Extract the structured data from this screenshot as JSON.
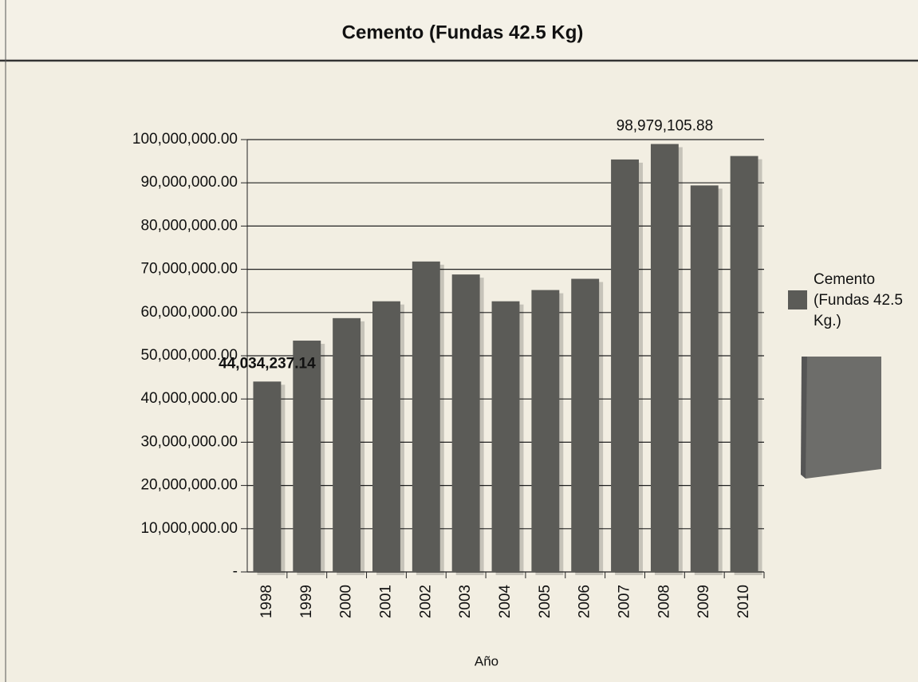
{
  "chart_data": {
    "type": "bar",
    "title": "Cemento (Fundas 42.5 Kg)",
    "x_label": "Año",
    "categories": [
      "1998",
      "1999",
      "2000",
      "2001",
      "2002",
      "2003",
      "2004",
      "2005",
      "2006",
      "2007",
      "2008",
      "2009",
      "2010"
    ],
    "series": [
      {
        "name": "Cemento (Fundas 42.5 Kg.)",
        "color": "#5b5b57",
        "values": [
          44034237.14,
          53500000,
          58700000,
          62600000,
          71800000,
          68800000,
          62600000,
          65200000,
          67800000,
          95400000,
          98979105.88,
          89400000,
          96200000
        ],
        "value_labels": [
          "44,034,237.14",
          null,
          null,
          null,
          null,
          null,
          null,
          null,
          null,
          null,
          "98,979,105.88",
          null,
          null
        ],
        "value_label_colors": [
          "#2e4d7a",
          null,
          null,
          null,
          null,
          null,
          null,
          null,
          null,
          null,
          "#111111",
          null,
          null
        ]
      }
    ],
    "ylim": [
      0,
      100000000
    ],
    "yticks": [
      {
        "value": 0,
        "label": "-"
      },
      {
        "value": 10000000,
        "label": "10,000,000.00"
      },
      {
        "value": 20000000,
        "label": "20,000,000.00"
      },
      {
        "value": 30000000,
        "label": "30,000,000.00"
      },
      {
        "value": 40000000,
        "label": "40,000,000.00"
      },
      {
        "value": 50000000,
        "label": "50,000,000.00"
      },
      {
        "value": 60000000,
        "label": "60,000,000.00"
      },
      {
        "value": 70000000,
        "label": "70,000,000.00"
      },
      {
        "value": 80000000,
        "label": "80,000,000.00"
      },
      {
        "value": 90000000,
        "label": "90,000,000.00"
      },
      {
        "value": 100000000,
        "label": "100,000,000.00"
      }
    ],
    "grid": true,
    "legend": "right"
  }
}
